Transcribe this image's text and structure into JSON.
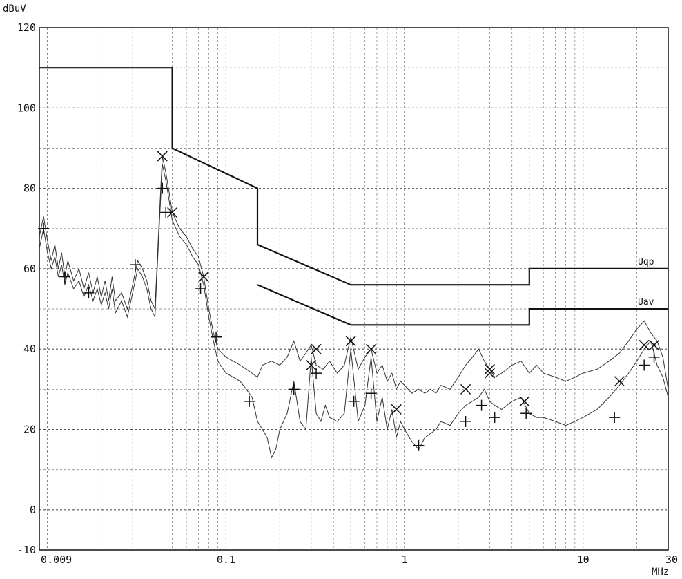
{
  "chart_data": {
    "type": "line",
    "title": "",
    "ylabel": "dBuV",
    "xlabel": "MHz",
    "xscale": "log",
    "xlim": [
      0.009,
      30
    ],
    "ylim": [
      -10,
      120
    ],
    "grid": true,
    "x_ticks": [
      {
        "value": 0.009,
        "label": "0.009"
      },
      {
        "value": 0.1,
        "label": "0.1"
      },
      {
        "value": 1,
        "label": "1"
      },
      {
        "value": 10,
        "label": "10"
      },
      {
        "value": 30,
        "label": "30"
      }
    ],
    "y_ticks": [
      {
        "value": 120,
        "label": "120"
      },
      {
        "value": 100,
        "label": "100"
      },
      {
        "value": 80,
        "label": "80"
      },
      {
        "value": 60,
        "label": "60"
      },
      {
        "value": 40,
        "label": "40"
      },
      {
        "value": 20,
        "label": "20"
      },
      {
        "value": 0,
        "label": "0"
      },
      {
        "value": -10,
        "label": "-10"
      }
    ],
    "limit_lines": [
      {
        "name": "Uqp",
        "points": [
          [
            0.009,
            110
          ],
          [
            0.05,
            110
          ],
          [
            0.05,
            90
          ],
          [
            0.15,
            80
          ],
          [
            0.15,
            66
          ],
          [
            0.5,
            56
          ],
          [
            5,
            56
          ],
          [
            5,
            60
          ],
          [
            30,
            60
          ]
        ]
      },
      {
        "name": "Uav",
        "points": [
          [
            0.15,
            56
          ],
          [
            0.5,
            46
          ],
          [
            5,
            46
          ],
          [
            5,
            50
          ],
          [
            30,
            50
          ]
        ]
      }
    ],
    "series": [
      {
        "type": "line",
        "points": [
          [
            0.009,
            68
          ],
          [
            0.0095,
            73
          ],
          [
            0.01,
            67
          ],
          [
            0.0105,
            62
          ],
          [
            0.011,
            66
          ],
          [
            0.0115,
            60
          ],
          [
            0.012,
            64
          ],
          [
            0.0125,
            58
          ],
          [
            0.013,
            62
          ],
          [
            0.014,
            57
          ],
          [
            0.015,
            60
          ],
          [
            0.016,
            55
          ],
          [
            0.017,
            59
          ],
          [
            0.018,
            54
          ],
          [
            0.019,
            58
          ],
          [
            0.02,
            53
          ],
          [
            0.021,
            57
          ],
          [
            0.022,
            52
          ],
          [
            0.023,
            58
          ],
          [
            0.024,
            52
          ],
          [
            0.026,
            54
          ],
          [
            0.028,
            50
          ],
          [
            0.03,
            56
          ],
          [
            0.032,
            62
          ],
          [
            0.034,
            60
          ],
          [
            0.036,
            57
          ],
          [
            0.038,
            52
          ],
          [
            0.04,
            50
          ],
          [
            0.042,
            70
          ],
          [
            0.044,
            88
          ],
          [
            0.046,
            84
          ],
          [
            0.048,
            79
          ],
          [
            0.05,
            74
          ],
          [
            0.055,
            70
          ],
          [
            0.06,
            68
          ],
          [
            0.065,
            65
          ],
          [
            0.07,
            63
          ],
          [
            0.075,
            58
          ],
          [
            0.08,
            50
          ],
          [
            0.085,
            44
          ],
          [
            0.09,
            40
          ],
          [
            0.1,
            38
          ],
          [
            0.11,
            37
          ],
          [
            0.12,
            36
          ],
          [
            0.13,
            35
          ],
          [
            0.14,
            34
          ],
          [
            0.15,
            33
          ],
          [
            0.16,
            36
          ],
          [
            0.18,
            37
          ],
          [
            0.2,
            36
          ],
          [
            0.22,
            38
          ],
          [
            0.24,
            42
          ],
          [
            0.26,
            37
          ],
          [
            0.28,
            39
          ],
          [
            0.3,
            41
          ],
          [
            0.32,
            36
          ],
          [
            0.35,
            35
          ],
          [
            0.38,
            37
          ],
          [
            0.42,
            34
          ],
          [
            0.46,
            36
          ],
          [
            0.5,
            43
          ],
          [
            0.55,
            35
          ],
          [
            0.6,
            38
          ],
          [
            0.65,
            40
          ],
          [
            0.7,
            34
          ],
          [
            0.75,
            36
          ],
          [
            0.8,
            32
          ],
          [
            0.85,
            34
          ],
          [
            0.9,
            30
          ],
          [
            0.95,
            32
          ],
          [
            1,
            31
          ],
          [
            1.1,
            29
          ],
          [
            1.2,
            30
          ],
          [
            1.3,
            29
          ],
          [
            1.4,
            30
          ],
          [
            1.5,
            29
          ],
          [
            1.6,
            31
          ],
          [
            1.8,
            30
          ],
          [
            2,
            33
          ],
          [
            2.2,
            36
          ],
          [
            2.4,
            38
          ],
          [
            2.6,
            40
          ],
          [
            2.8,
            37
          ],
          [
            3,
            35
          ],
          [
            3.2,
            33
          ],
          [
            3.5,
            34
          ],
          [
            4,
            36
          ],
          [
            4.5,
            37
          ],
          [
            5,
            34
          ],
          [
            5.5,
            36
          ],
          [
            6,
            34
          ],
          [
            7,
            33
          ],
          [
            8,
            32
          ],
          [
            9,
            33
          ],
          [
            10,
            34
          ],
          [
            12,
            35
          ],
          [
            14,
            37
          ],
          [
            16,
            39
          ],
          [
            18,
            42
          ],
          [
            20,
            45
          ],
          [
            22,
            47
          ],
          [
            24,
            44
          ],
          [
            26,
            42
          ],
          [
            28,
            38
          ],
          [
            30,
            30
          ]
        ]
      },
      {
        "type": "line",
        "points": [
          [
            0.009,
            65
          ],
          [
            0.0095,
            70
          ],
          [
            0.01,
            64
          ],
          [
            0.0105,
            60
          ],
          [
            0.011,
            63
          ],
          [
            0.0115,
            58
          ],
          [
            0.012,
            61
          ],
          [
            0.0125,
            56
          ],
          [
            0.013,
            59
          ],
          [
            0.014,
            55
          ],
          [
            0.015,
            57
          ],
          [
            0.016,
            53
          ],
          [
            0.017,
            56
          ],
          [
            0.018,
            52
          ],
          [
            0.019,
            55
          ],
          [
            0.02,
            51
          ],
          [
            0.021,
            54
          ],
          [
            0.022,
            50
          ],
          [
            0.023,
            55
          ],
          [
            0.024,
            49
          ],
          [
            0.026,
            52
          ],
          [
            0.028,
            48
          ],
          [
            0.03,
            54
          ],
          [
            0.032,
            60
          ],
          [
            0.034,
            58
          ],
          [
            0.036,
            55
          ],
          [
            0.038,
            50
          ],
          [
            0.04,
            48
          ],
          [
            0.042,
            68
          ],
          [
            0.044,
            86
          ],
          [
            0.046,
            82
          ],
          [
            0.048,
            77
          ],
          [
            0.05,
            72
          ],
          [
            0.055,
            68
          ],
          [
            0.06,
            66
          ],
          [
            0.065,
            63
          ],
          [
            0.07,
            61
          ],
          [
            0.075,
            56
          ],
          [
            0.08,
            48
          ],
          [
            0.085,
            42
          ],
          [
            0.09,
            37
          ],
          [
            0.1,
            34
          ],
          [
            0.11,
            33
          ],
          [
            0.12,
            32
          ],
          [
            0.13,
            30
          ],
          [
            0.14,
            28
          ],
          [
            0.15,
            22
          ],
          [
            0.16,
            20
          ],
          [
            0.17,
            18
          ],
          [
            0.18,
            13
          ],
          [
            0.19,
            15
          ],
          [
            0.2,
            20
          ],
          [
            0.22,
            24
          ],
          [
            0.24,
            32
          ],
          [
            0.26,
            22
          ],
          [
            0.28,
            20
          ],
          [
            0.3,
            38
          ],
          [
            0.32,
            24
          ],
          [
            0.34,
            22
          ],
          [
            0.36,
            26
          ],
          [
            0.38,
            23
          ],
          [
            0.42,
            22
          ],
          [
            0.46,
            24
          ],
          [
            0.5,
            40
          ],
          [
            0.55,
            22
          ],
          [
            0.6,
            26
          ],
          [
            0.65,
            38
          ],
          [
            0.7,
            22
          ],
          [
            0.75,
            28
          ],
          [
            0.8,
            20
          ],
          [
            0.85,
            25
          ],
          [
            0.9,
            18
          ],
          [
            0.95,
            22
          ],
          [
            1,
            20
          ],
          [
            1.1,
            17
          ],
          [
            1.2,
            15
          ],
          [
            1.3,
            18
          ],
          [
            1.4,
            19
          ],
          [
            1.5,
            20
          ],
          [
            1.6,
            22
          ],
          [
            1.8,
            21
          ],
          [
            2,
            24
          ],
          [
            2.2,
            26
          ],
          [
            2.4,
            27
          ],
          [
            2.6,
            28
          ],
          [
            2.8,
            30
          ],
          [
            3,
            27
          ],
          [
            3.2,
            26
          ],
          [
            3.5,
            25
          ],
          [
            4,
            27
          ],
          [
            4.5,
            28
          ],
          [
            5,
            24
          ],
          [
            5.5,
            23
          ],
          [
            6,
            23
          ],
          [
            7,
            22
          ],
          [
            8,
            21
          ],
          [
            9,
            22
          ],
          [
            10,
            23
          ],
          [
            12,
            25
          ],
          [
            14,
            28
          ],
          [
            16,
            31
          ],
          [
            18,
            34
          ],
          [
            20,
            37
          ],
          [
            22,
            40
          ],
          [
            24,
            42
          ],
          [
            26,
            36
          ],
          [
            28,
            33
          ],
          [
            30,
            28
          ]
        ]
      },
      {
        "type": "scatter",
        "marker": "x",
        "points": [
          [
            0.044,
            88
          ],
          [
            0.05,
            74
          ],
          [
            0.075,
            58
          ],
          [
            0.3,
            36
          ],
          [
            0.32,
            40
          ],
          [
            0.5,
            42
          ],
          [
            0.65,
            40
          ],
          [
            0.9,
            25
          ],
          [
            2.2,
            30
          ],
          [
            3,
            34
          ],
          [
            3,
            35
          ],
          [
            4.7,
            27
          ],
          [
            16,
            32
          ],
          [
            22,
            41
          ],
          [
            25,
            41
          ]
        ]
      },
      {
        "type": "scatter",
        "marker": "+",
        "points": [
          [
            0.0095,
            70
          ],
          [
            0.0125,
            58
          ],
          [
            0.017,
            54
          ],
          [
            0.031,
            61
          ],
          [
            0.044,
            80
          ],
          [
            0.046,
            74
          ],
          [
            0.072,
            55
          ],
          [
            0.088,
            43
          ],
          [
            0.135,
            27
          ],
          [
            0.24,
            30
          ],
          [
            0.32,
            34
          ],
          [
            0.52,
            27
          ],
          [
            0.65,
            29
          ],
          [
            1.2,
            16
          ],
          [
            2.2,
            22
          ],
          [
            2.7,
            26
          ],
          [
            3.2,
            23
          ],
          [
            4.8,
            24
          ],
          [
            15,
            23
          ],
          [
            22,
            36
          ],
          [
            25,
            38
          ]
        ]
      }
    ]
  }
}
